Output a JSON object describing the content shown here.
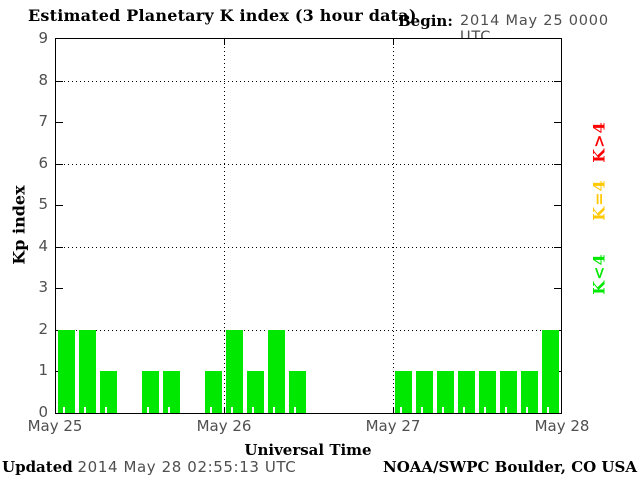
{
  "title": "Estimated Planetary K index (3 hour data)",
  "begin": {
    "label": "Begin:",
    "value": "2014 May 25 0000 UTC"
  },
  "footer": {
    "updated_label": "Updated",
    "updated_value": "2014 May 28 02:55:13 UTC",
    "source": "NOAA/SWPC Boulder, CO USA"
  },
  "chart_data": {
    "type": "bar",
    "title": "Estimated Planetary K index (3 hour data)",
    "xlabel": "Universal Time",
    "ylabel": "Kp index",
    "ylim": [
      0,
      9
    ],
    "yticks": [
      0,
      1,
      2,
      3,
      4,
      5,
      6,
      7,
      8,
      9
    ],
    "grid_y": [
      2,
      4,
      6,
      8
    ],
    "x_tick_labels": [
      "May 25",
      "May 26",
      "May 27",
      "May 28"
    ],
    "bar_interval_hours": 3,
    "bars_per_day": 8,
    "series": [
      {
        "day": "May 25",
        "values": [
          2,
          2,
          1,
          0,
          1,
          1,
          0,
          1
        ]
      },
      {
        "day": "May 26",
        "values": [
          2,
          1,
          2,
          1,
          0,
          0,
          0,
          0
        ]
      },
      {
        "day": "May 27",
        "values": [
          1,
          1,
          1,
          1,
          1,
          1,
          1,
          2
        ]
      }
    ],
    "bar_color": "#00e800",
    "grid": true,
    "legend_position": "right-rotated",
    "legend": [
      {
        "label": "K>4",
        "color": "#ff0000"
      },
      {
        "label": "K=4",
        "color": "#ffc800"
      },
      {
        "label": "K<4",
        "color": "#00e800"
      }
    ]
  }
}
